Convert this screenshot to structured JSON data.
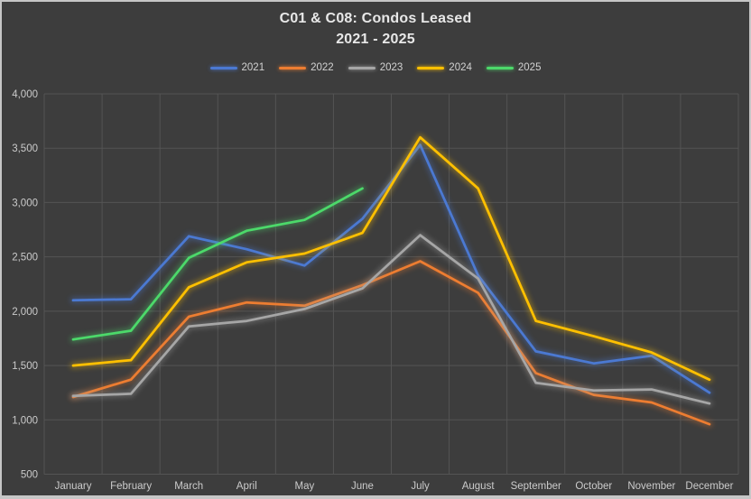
{
  "frame": {
    "background": "#3d3d3d",
    "border_color": "#c6c6c6"
  },
  "title": {
    "line1": "C01 & C08: Condos Leased",
    "line2": "2021 - 2025",
    "color": "#e8e8e8"
  },
  "axis": {
    "label_color": "#cbcbcb",
    "grid_color": "#545454"
  },
  "chart_data": {
    "type": "line",
    "title": "C01 & C08: Condos Leased 2021 - 2025",
    "categories": [
      "January",
      "February",
      "March",
      "April",
      "May",
      "June",
      "July",
      "August",
      "September",
      "October",
      "November",
      "December"
    ],
    "series": [
      {
        "name": "2021",
        "color": "#4b79d2",
        "values": [
          2100,
          2110,
          2690,
          2570,
          2420,
          2850,
          3530,
          2330,
          1630,
          1520,
          1590,
          1250
        ]
      },
      {
        "name": "2022",
        "color": "#ed7d31",
        "values": [
          1210,
          1370,
          1950,
          2080,
          2050,
          2240,
          2460,
          2170,
          1430,
          1230,
          1160,
          960
        ]
      },
      {
        "name": "2023",
        "color": "#a6a6a6",
        "values": [
          1220,
          1240,
          1860,
          1910,
          2020,
          2210,
          2700,
          2300,
          1340,
          1270,
          1280,
          1150
        ]
      },
      {
        "name": "2024",
        "color": "#ffc000",
        "values": [
          1500,
          1550,
          2220,
          2450,
          2530,
          2720,
          3600,
          3130,
          1910,
          1770,
          1620,
          1370
        ]
      },
      {
        "name": "2025",
        "color": "#4cd96a",
        "values": [
          1740,
          1820,
          2490,
          2740,
          2840,
          3130,
          null,
          null,
          null,
          null,
          null,
          null
        ]
      }
    ],
    "ylim": [
      500,
      4000
    ],
    "ytick_step": 500,
    "yticklabels": [
      "500",
      "1,000",
      "1,500",
      "2,000",
      "2,500",
      "3,000",
      "3,500",
      "4,000"
    ],
    "grid": true,
    "legend_position": "top",
    "glow_effect": true
  }
}
